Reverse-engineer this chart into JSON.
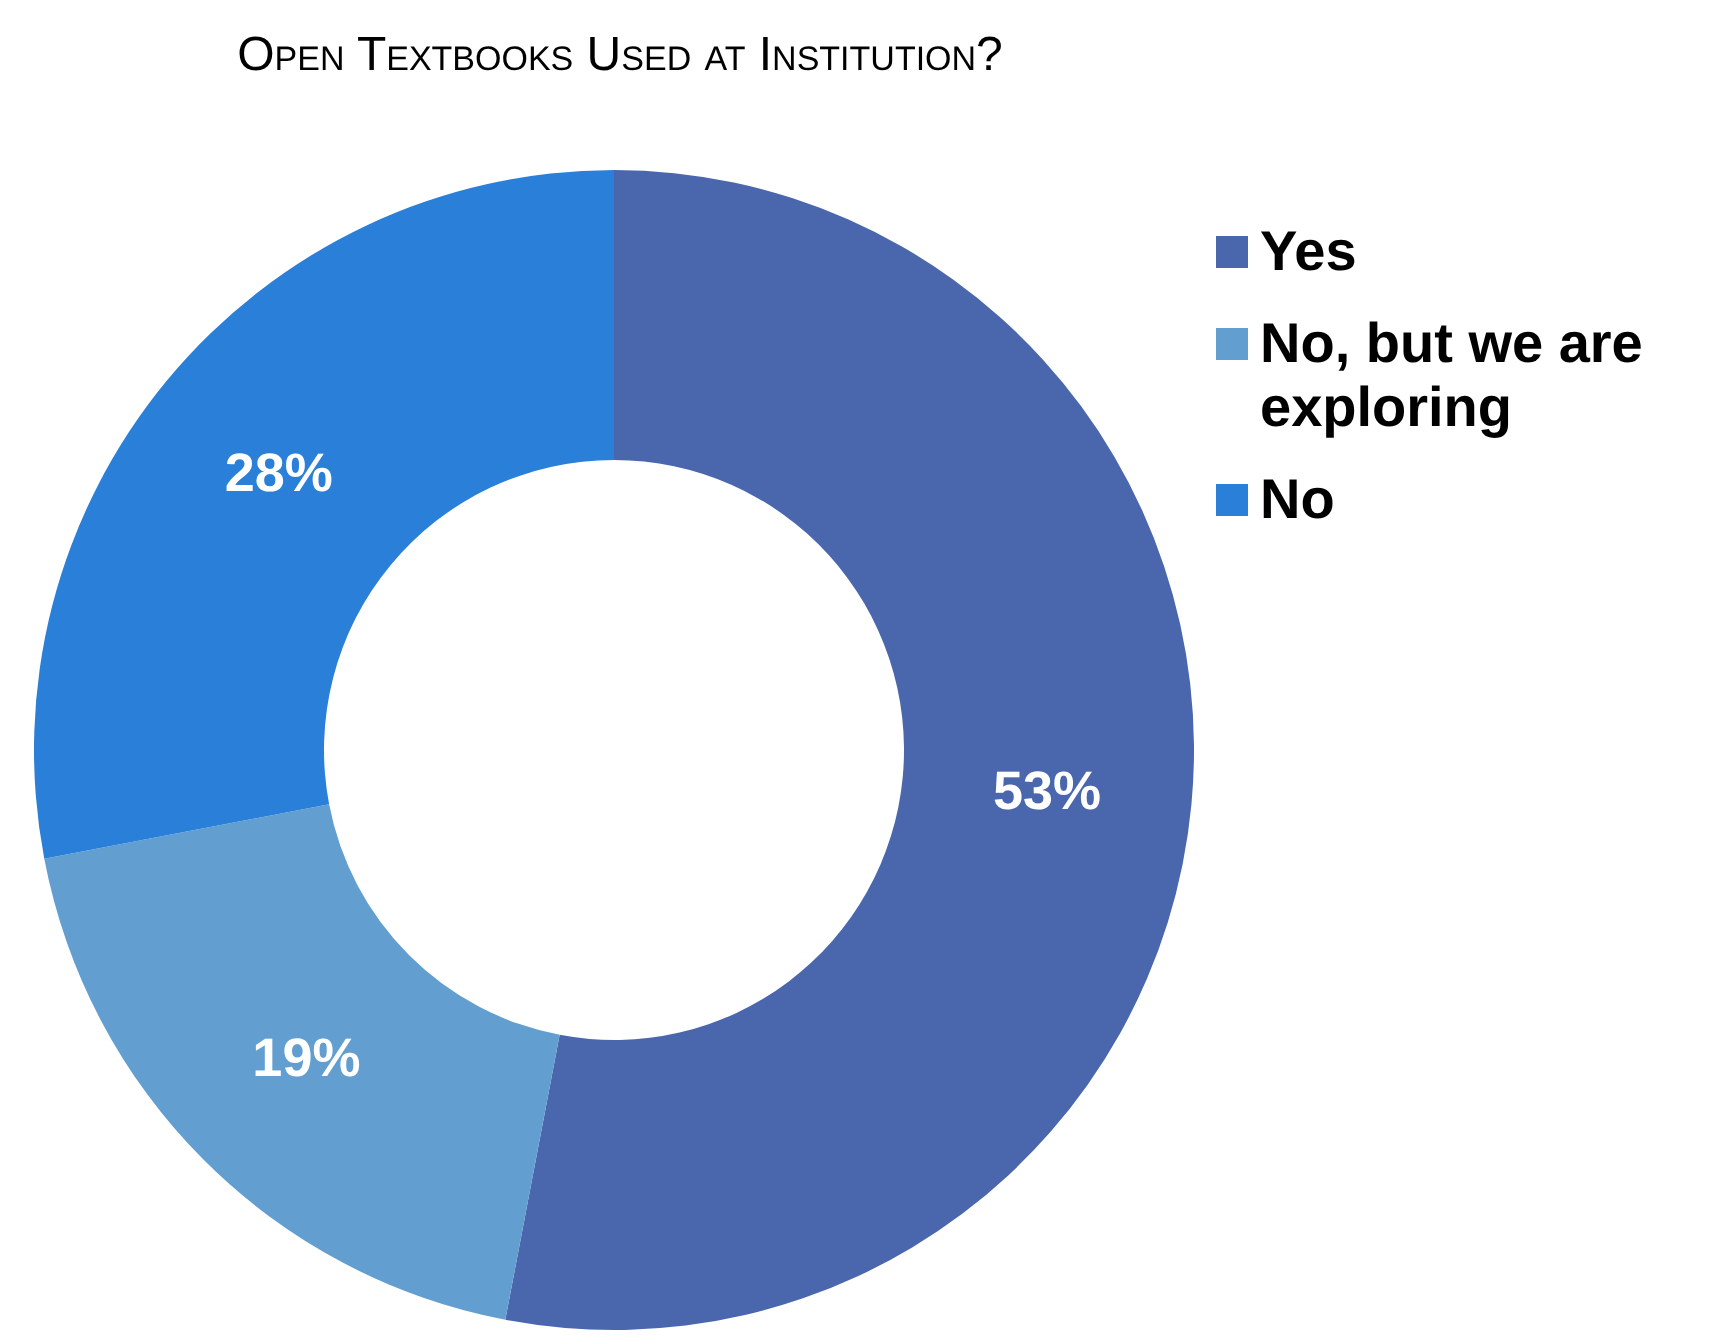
{
  "chart_data": {
    "type": "donut",
    "title": "Open Textbooks Used at Institution?",
    "categories": [
      "Yes",
      "No, but we are exploring",
      "No"
    ],
    "values": [
      53,
      19,
      28
    ],
    "colors": [
      "#4a67ae",
      "#629fd0",
      "#2a7fd8"
    ],
    "value_labels": [
      "53%",
      "19%",
      "28%"
    ],
    "legend": "top right"
  }
}
